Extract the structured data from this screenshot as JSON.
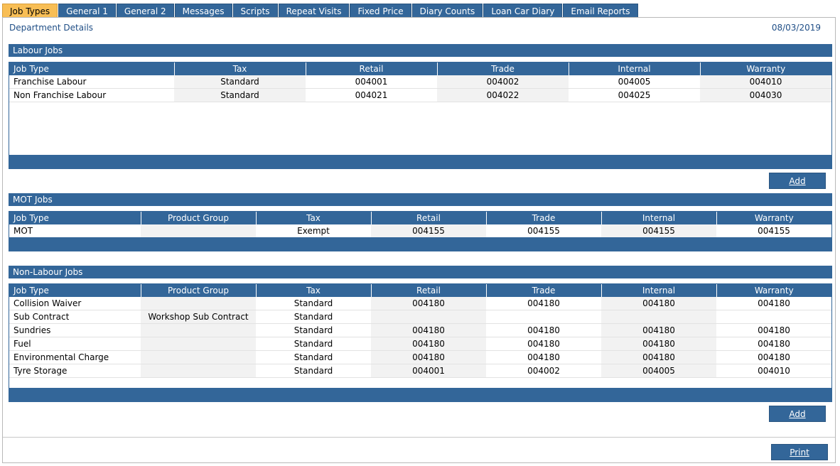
{
  "tabs": [
    "Job Types",
    "General 1",
    "General 2",
    "Messages",
    "Scripts",
    "Repeat Visits",
    "Fixed Price",
    "Diary Counts",
    "Loan Car Diary",
    "Email Reports"
  ],
  "header": {
    "title": "Department Details",
    "date": "08/03/2019"
  },
  "labour": {
    "title": "Labour Jobs",
    "columns": [
      "Job Type",
      "Tax",
      "Retail",
      "Trade",
      "Internal",
      "Warranty"
    ],
    "rows": [
      [
        "Franchise Labour",
        "Standard",
        "004001",
        "004002",
        "004005",
        "004010"
      ],
      [
        "Non Franchise Labour",
        "Standard",
        "004021",
        "004022",
        "004025",
        "004030"
      ]
    ],
    "add_label": "Add"
  },
  "mot": {
    "title": "MOT Jobs",
    "columns": [
      "Job Type",
      "Product Group",
      "Tax",
      "Retail",
      "Trade",
      "Internal",
      "Warranty"
    ],
    "rows": [
      [
        "MOT",
        "",
        "Exempt",
        "004155",
        "004155",
        "004155",
        "004155"
      ]
    ]
  },
  "nonlabour": {
    "title": "Non-Labour Jobs",
    "columns": [
      "Job Type",
      "Product Group",
      "Tax",
      "Retail",
      "Trade",
      "Internal",
      "Warranty"
    ],
    "rows": [
      [
        "Collision Waiver",
        "",
        "Standard",
        "004180",
        "004180",
        "004180",
        "004180"
      ],
      [
        "Sub Contract",
        "Workshop Sub Contract",
        "Standard",
        "",
        "",
        "",
        ""
      ],
      [
        "Sundries",
        "",
        "Standard",
        "004180",
        "004180",
        "004180",
        "004180"
      ],
      [
        "Fuel",
        "",
        "Standard",
        "004180",
        "004180",
        "004180",
        "004180"
      ],
      [
        "Environmental Charge",
        "",
        "Standard",
        "004180",
        "004180",
        "004180",
        "004180"
      ],
      [
        "Tyre Storage",
        "",
        "Standard",
        "004001",
        "004002",
        "004005",
        "004010"
      ]
    ],
    "add_label": "Add"
  },
  "print_label": "Print"
}
